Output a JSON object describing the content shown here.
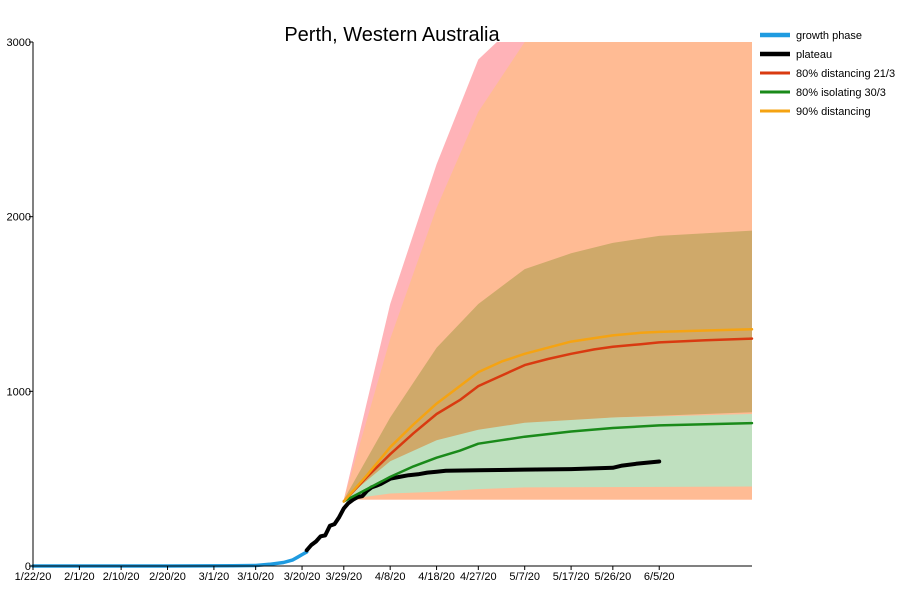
{
  "chart_data": {
    "type": "line",
    "title": "Perth, Western Australia",
    "xlabel": "",
    "ylabel": "",
    "x_start": "1/22/20",
    "x_end": "6/25/20",
    "x_ticks": [
      "1/22/20",
      "2/1/20",
      "2/10/20",
      "2/20/20",
      "3/1/20",
      "3/10/20",
      "3/20/20",
      "3/29/20",
      "4/8/20",
      "4/18/20",
      "4/27/20",
      "5/7/20",
      "5/17/20",
      "5/26/20",
      "6/5/20"
    ],
    "ylim": [
      0,
      3000
    ],
    "y_ticks": [
      0,
      1000,
      2000,
      3000
    ],
    "grid": false,
    "legend_position": "top-right",
    "colors": {
      "growth": "#1f9be0",
      "plateau": "#000000",
      "distancing80": "#d93a10",
      "isolating80": "#1a8a1a",
      "distancing90": "#f5a312",
      "band_pink": "#ffb3b8",
      "band_peach": "#ffbb94",
      "band_tan": "#cfa96a",
      "band_grey": "#c8c8b0",
      "band_green": "#bfe0bf"
    },
    "legend": [
      {
        "label": "growth phase",
        "color": "#1f9be0"
      },
      {
        "label": "plateau",
        "color": "#000000"
      },
      {
        "label": "80% distancing 21/3",
        "color": "#d93a10"
      },
      {
        "label": "80% isolating 30/3",
        "color": "#1a8a1a"
      },
      {
        "label": "90% distancing",
        "color": "#f5a312"
      }
    ],
    "bands": [
      {
        "name": "90% distancing range",
        "color": "#ffb3b8",
        "upper": [
          [
            "3/29/20",
            380
          ],
          [
            "4/8/20",
            1500
          ],
          [
            "4/18/20",
            2300
          ],
          [
            "4/27/20",
            2900
          ],
          [
            "5/1/20",
            3000
          ],
          [
            "6/25/20",
            3000
          ]
        ],
        "lower": [
          [
            "3/29/20",
            380
          ],
          [
            "6/25/20",
            380
          ]
        ]
      },
      {
        "name": "80% distancing range",
        "color": "#ffbb94",
        "upper": [
          [
            "3/29/20",
            380
          ],
          [
            "4/8/20",
            1300
          ],
          [
            "4/18/20",
            2050
          ],
          [
            "4/27/20",
            2600
          ],
          [
            "5/7/20",
            3000
          ],
          [
            "6/25/20",
            3000
          ]
        ],
        "lower": [
          [
            "3/29/20",
            380
          ],
          [
            "6/25/20",
            380
          ]
        ]
      },
      {
        "name": "80% distancing inner range",
        "color": "#cfa96a",
        "upper": [
          [
            "3/29/20",
            380
          ],
          [
            "4/8/20",
            850
          ],
          [
            "4/18/20",
            1250
          ],
          [
            "4/27/20",
            1500
          ],
          [
            "5/7/20",
            1700
          ],
          [
            "5/17/20",
            1790
          ],
          [
            "5/26/20",
            1850
          ],
          [
            "6/5/20",
            1890
          ],
          [
            "6/25/20",
            1920
          ]
        ],
        "lower": [
          [
            "3/29/20",
            380
          ],
          [
            "4/8/20",
            560
          ],
          [
            "4/18/20",
            660
          ],
          [
            "4/27/20",
            740
          ],
          [
            "5/7/20",
            800
          ],
          [
            "5/26/20",
            850
          ],
          [
            "6/25/20",
            880
          ]
        ]
      },
      {
        "name": "80% isolating range",
        "color": "#bfe0bf",
        "upper": [
          [
            "3/29/20",
            380
          ],
          [
            "4/8/20",
            600
          ],
          [
            "4/18/20",
            720
          ],
          [
            "4/27/20",
            780
          ],
          [
            "5/7/20",
            820
          ],
          [
            "5/26/20",
            850
          ],
          [
            "6/25/20",
            870
          ]
        ],
        "lower": [
          [
            "3/29/20",
            380
          ],
          [
            "4/8/20",
            415
          ],
          [
            "4/18/20",
            425
          ],
          [
            "4/27/20",
            440
          ],
          [
            "5/7/20",
            450
          ],
          [
            "6/25/20",
            455
          ]
        ]
      }
    ],
    "series": [
      {
        "name": "growth phase",
        "color": "#1f9be0",
        "width": 3.5,
        "points": [
          [
            "1/22/20",
            0
          ],
          [
            "2/20/20",
            0
          ],
          [
            "3/5/20",
            1
          ],
          [
            "3/10/20",
            3
          ],
          [
            "3/13/20",
            10
          ],
          [
            "3/16/20",
            20
          ],
          [
            "3/18/20",
            35
          ],
          [
            "3/19/20",
            50
          ],
          [
            "3/20/20",
            65
          ],
          [
            "3/21/20",
            80
          ]
        ]
      },
      {
        "name": "plateau",
        "color": "#000000",
        "width": 4,
        "points": [
          [
            "3/21/20",
            90
          ],
          [
            "3/22/20",
            120
          ],
          [
            "3/23/20",
            140
          ],
          [
            "3/24/20",
            170
          ],
          [
            "3/25/20",
            175
          ],
          [
            "3/26/20",
            230
          ],
          [
            "3/27/20",
            240
          ],
          [
            "3/28/20",
            280
          ],
          [
            "3/29/20",
            330
          ],
          [
            "3/30/20",
            360
          ],
          [
            "3/31/20",
            380
          ],
          [
            "4/1/20",
            395
          ],
          [
            "4/2/20",
            400
          ],
          [
            "4/3/20",
            430
          ],
          [
            "4/4/20",
            450
          ],
          [
            "4/5/20",
            460
          ],
          [
            "4/6/20",
            470
          ],
          [
            "4/8/20",
            500
          ],
          [
            "4/10/20",
            510
          ],
          [
            "4/12/20",
            520
          ],
          [
            "4/14/20",
            525
          ],
          [
            "4/16/20",
            535
          ],
          [
            "4/18/20",
            540
          ],
          [
            "4/20/20",
            545
          ],
          [
            "4/27/20",
            548
          ],
          [
            "5/7/20",
            552
          ],
          [
            "5/17/20",
            555
          ],
          [
            "5/26/20",
            562
          ],
          [
            "5/28/20",
            575
          ],
          [
            "5/31/20",
            585
          ],
          [
            "6/5/20",
            598
          ]
        ]
      },
      {
        "name": "80% distancing 21/3",
        "color": "#d93a10",
        "width": 2.5,
        "points": [
          [
            "3/29/20",
            370
          ],
          [
            "4/3/20",
            510
          ],
          [
            "4/8/20",
            640
          ],
          [
            "4/13/20",
            760
          ],
          [
            "4/18/20",
            870
          ],
          [
            "4/23/20",
            950
          ],
          [
            "4/27/20",
            1030
          ],
          [
            "5/2/20",
            1090
          ],
          [
            "5/7/20",
            1150
          ],
          [
            "5/12/20",
            1185
          ],
          [
            "5/17/20",
            1215
          ],
          [
            "5/22/20",
            1240
          ],
          [
            "5/26/20",
            1255
          ],
          [
            "6/1/20",
            1270
          ],
          [
            "6/5/20",
            1280
          ],
          [
            "6/15/20",
            1292
          ],
          [
            "6/25/20",
            1302
          ]
        ]
      },
      {
        "name": "80% isolating 30/3",
        "color": "#1a8a1a",
        "width": 2.5,
        "points": [
          [
            "3/29/20",
            370
          ],
          [
            "4/3/20",
            440
          ],
          [
            "4/8/20",
            510
          ],
          [
            "4/13/20",
            570
          ],
          [
            "4/18/20",
            620
          ],
          [
            "4/23/20",
            660
          ],
          [
            "4/27/20",
            700
          ],
          [
            "5/2/20",
            720
          ],
          [
            "5/7/20",
            740
          ],
          [
            "5/17/20",
            770
          ],
          [
            "5/26/20",
            790
          ],
          [
            "6/5/20",
            805
          ],
          [
            "6/15/20",
            812
          ],
          [
            "6/25/20",
            818
          ]
        ]
      },
      {
        "name": "90% distancing",
        "color": "#f5a312",
        "width": 2.5,
        "points": [
          [
            "3/29/20",
            370
          ],
          [
            "4/3/20",
            520
          ],
          [
            "4/8/20",
            680
          ],
          [
            "4/13/20",
            810
          ],
          [
            "4/18/20",
            930
          ],
          [
            "4/23/20",
            1030
          ],
          [
            "4/27/20",
            1110
          ],
          [
            "5/2/20",
            1170
          ],
          [
            "5/7/20",
            1215
          ],
          [
            "5/12/20",
            1250
          ],
          [
            "5/17/20",
            1285
          ],
          [
            "5/22/20",
            1305
          ],
          [
            "5/26/20",
            1320
          ],
          [
            "6/1/20",
            1335
          ],
          [
            "6/5/20",
            1340
          ],
          [
            "6/15/20",
            1348
          ],
          [
            "6/25/20",
            1355
          ]
        ]
      }
    ]
  }
}
